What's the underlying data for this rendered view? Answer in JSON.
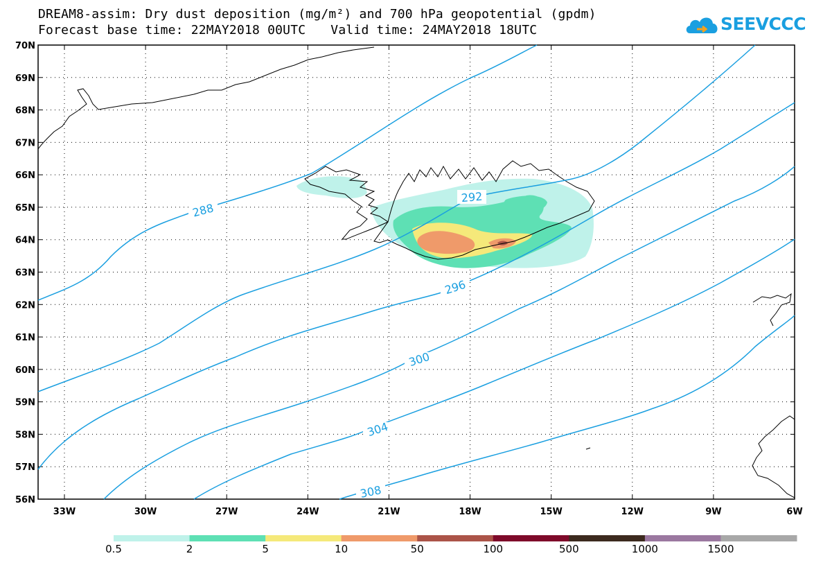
{
  "header": {
    "title_line1": "DREAM8-assim: Dry dust deposition (mg/m²) and 700 hPa geopotential (gpdm)",
    "forecast_base": "Forecast base time: 22MAY2018 00UTC",
    "valid_time": "Valid time: 24MAY2018 18UTC"
  },
  "logo": {
    "text": "SEEVCCC",
    "icon": "cloud-icon",
    "color": "#1a9fe0"
  },
  "map": {
    "lat_labels": [
      "70N",
      "69N",
      "68N",
      "67N",
      "66N",
      "65N",
      "64N",
      "63N",
      "62N",
      "61N",
      "60N",
      "59N",
      "58N",
      "57N",
      "56N"
    ],
    "lon_labels": [
      "33W",
      "30W",
      "27W",
      "24W",
      "21W",
      "18W",
      "15W",
      "12W",
      "9W",
      "6W"
    ],
    "gridlines": true,
    "contour_color": "#1a9fe0",
    "contour_labels": [
      "288",
      "292",
      "296",
      "300",
      "304",
      "308"
    ]
  },
  "legend": {
    "colors": [
      "#bff2ea",
      "#5ee0b4",
      "#f5e97a",
      "#ef9a6a",
      "#ab5448",
      "#7e0a2a",
      "#3c2a1e",
      "#9b78a0",
      "#a8a8a8"
    ],
    "labels": [
      "0.5",
      "2",
      "5",
      "10",
      "50",
      "100",
      "500",
      "1000",
      "1500"
    ]
  }
}
